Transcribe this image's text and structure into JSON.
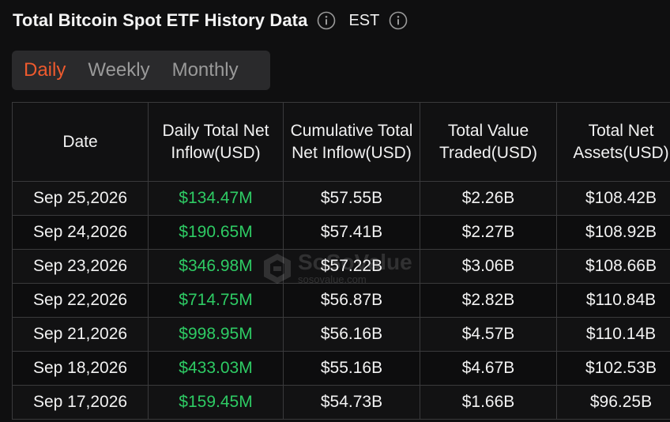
{
  "header": {
    "title": "Total Bitcoin Spot ETF History Data",
    "timezone": "EST"
  },
  "tabs": [
    {
      "label": "Daily",
      "active": true
    },
    {
      "label": "Weekly",
      "active": false
    },
    {
      "label": "Monthly",
      "active": false
    }
  ],
  "table": {
    "columns": [
      "Date",
      "Daily Total Net Inflow(USD)",
      "Cumulative Total Net Inflow(USD)",
      "Total Value Traded(USD)",
      "Total Net Assets(USD)"
    ],
    "rows": [
      {
        "date": "Sep 25,2026",
        "daily_inflow": "$134.47M",
        "cumulative": "$57.55B",
        "traded": "$2.26B",
        "net_assets": "$108.42B"
      },
      {
        "date": "Sep 24,2026",
        "daily_inflow": "$190.65M",
        "cumulative": "$57.41B",
        "traded": "$2.27B",
        "net_assets": "$108.92B"
      },
      {
        "date": "Sep 23,2026",
        "daily_inflow": "$346.98M",
        "cumulative": "$57.22B",
        "traded": "$3.06B",
        "net_assets": "$108.66B"
      },
      {
        "date": "Sep 22,2026",
        "daily_inflow": "$714.75M",
        "cumulative": "$56.87B",
        "traded": "$2.82B",
        "net_assets": "$110.84B"
      },
      {
        "date": "Sep 21,2026",
        "daily_inflow": "$998.95M",
        "cumulative": "$56.16B",
        "traded": "$4.57B",
        "net_assets": "$110.14B"
      },
      {
        "date": "Sep 18,2026",
        "daily_inflow": "$433.03M",
        "cumulative": "$55.16B",
        "traded": "$4.67B",
        "net_assets": "$102.53B"
      },
      {
        "date": "Sep 17,2026",
        "daily_inflow": "$159.45M",
        "cumulative": "$54.73B",
        "traded": "$1.66B",
        "net_assets": "$96.25B"
      }
    ]
  },
  "watermark": {
    "brand": "SoSoValue",
    "url": "sosovalue.com"
  },
  "icons": {
    "title_info": "info-icon",
    "timezone_info": "info-icon",
    "watermark_logo": "sosovalue-logo-icon"
  },
  "colors": {
    "accent": "#ee5a2e",
    "positive": "#2ecb64",
    "background": "#0f0f10"
  }
}
